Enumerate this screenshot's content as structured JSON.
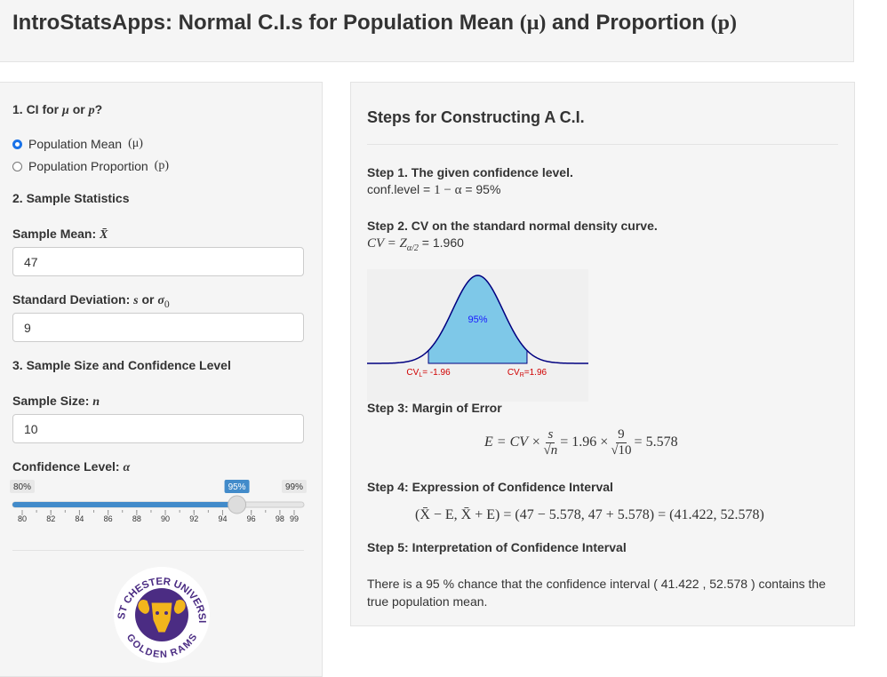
{
  "header": {
    "title_text": "IntroStatsApps: Normal C.I.s for Population Mean",
    "title_math1": "(μ)",
    "title_mid": "and Proportion",
    "title_math2": "(p)"
  },
  "sidebar": {
    "q1": {
      "text": "1. CI for",
      "m1": "μ",
      "or": "or",
      "m2": "p",
      "end": "?"
    },
    "choices": [
      {
        "text": "Population Mean",
        "math": "(μ)",
        "selected": true
      },
      {
        "text": "Population Proportion",
        "math": "(p)",
        "selected": false
      }
    ],
    "q2": "2. Sample Statistics",
    "mean": {
      "label": "Sample Mean:",
      "math": "X̄",
      "value": 47
    },
    "sd": {
      "label": "Standard Deviation:",
      "math1": "s",
      "or": "or",
      "math2": "σ",
      "sub": "0",
      "value": 9
    },
    "q3": "3. Sample Size and Confidence Level",
    "n": {
      "label": "Sample Size:",
      "math": "n",
      "value": 10
    },
    "conf": {
      "label": "Confidence Level:",
      "math": "α",
      "min": {
        "value": 80,
        "label": "80%"
      },
      "max": {
        "value": 99,
        "label": "99%"
      },
      "value": {
        "value": 95,
        "label": "95%"
      },
      "ticks": [
        80,
        82,
        84,
        86,
        88,
        90,
        92,
        94,
        96,
        98,
        99
      ],
      "color": "#428bca"
    },
    "logo": {
      "top": "WEST CHESTER UNIVERSITY",
      "bottom": "GOLDEN RAMS"
    }
  },
  "main": {
    "title": "Steps for Constructing A C.I.",
    "step1": {
      "heading": "Step 1. The given confidence level.",
      "lhs": "conf.level =",
      "math": "1 − α",
      "rhs": "= 95%"
    },
    "step2": {
      "heading": "Step 2. CV on the standard normal density curve.",
      "math": "CV = Z",
      "sub": "α/2",
      "rhs": "= 1.960",
      "plot": {
        "type": "normal",
        "xlim": [
          -4.4,
          4.4
        ],
        "cv_lower": -1.96,
        "cv_upper": 1.96,
        "area_label": "95%",
        "lower_label": {
          "base": "CV",
          "sub": "L",
          "text": "= -1.96"
        },
        "upper_label": {
          "base": "CV",
          "sub": "R",
          "text": "=1.96"
        },
        "fill": "#7ec8e8"
      }
    },
    "step3": {
      "heading": "Step 3: Margin of Error",
      "lhs": "E = CV ×",
      "f1_num": "s",
      "f1_den": "√n",
      "mid": "= 1.96 ×",
      "f2_num": "9",
      "f2_den": "√10",
      "result": "= 5.578"
    },
    "step4": {
      "heading": "Step 4: Expression of Confidence Interval",
      "expr": "(X̄ − E, X̄ + E) = (47 − 5.578, 47 + 5.578) = (41.422, 52.578)"
    },
    "step5": {
      "heading": "Step 5: Interpretation of Confidence Interval",
      "text": "There is a 95 % chance that the confidence interval ( 41.422 , 52.578 ) contains the true population mean."
    }
  }
}
